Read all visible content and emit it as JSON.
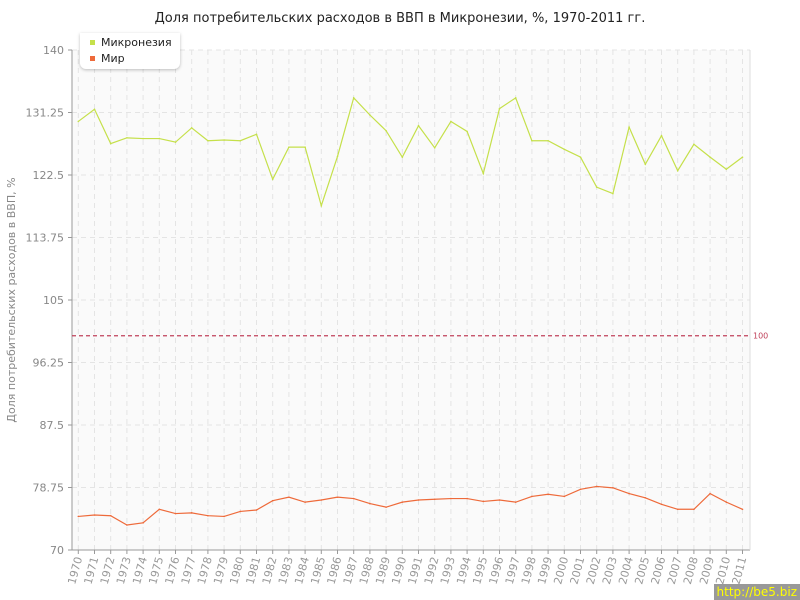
{
  "chart_data": {
    "type": "line",
    "title": "Доля потребительских расходов в ВВП в Микронезии, %, 1970-2011 гг.",
    "ylabel": "Доля потребительских расходов в ВВП, %",
    "xlabel": "",
    "ylim": [
      70,
      140
    ],
    "yticks": [
      "70",
      "78.75",
      "87.5",
      "96.25",
      "105",
      "113.75",
      "122.5",
      "131.25",
      "140"
    ],
    "x": [
      "1970",
      "1971",
      "1972",
      "1973",
      "1974",
      "1975",
      "1976",
      "1977",
      "1978",
      "1979",
      "1980",
      "1981",
      "1982",
      "1983",
      "1984",
      "1985",
      "1986",
      "1987",
      "1988",
      "1989",
      "1990",
      "1991",
      "1992",
      "1993",
      "1994",
      "1995",
      "1996",
      "1997",
      "1998",
      "1999",
      "2000",
      "2001",
      "2002",
      "2003",
      "2004",
      "2005",
      "2006",
      "2007",
      "2008",
      "2009",
      "2010",
      "2011"
    ],
    "series": [
      {
        "name": "Микронезия",
        "color": "#c5e04a",
        "values": [
          130.0,
          131.7,
          126.9,
          127.7,
          127.6,
          127.6,
          127.1,
          129.1,
          127.3,
          127.4,
          127.3,
          128.2,
          121.9,
          126.4,
          126.4,
          118.2,
          125.1,
          133.3,
          130.9,
          128.7,
          125.0,
          129.4,
          126.3,
          130.0,
          128.6,
          122.7,
          131.8,
          133.3,
          127.3,
          127.3,
          126.1,
          125.0,
          120.8,
          119.9,
          129.2,
          124.0,
          128.0,
          123.1,
          126.8,
          125.0,
          123.3,
          125.0
        ]
      },
      {
        "name": "Мир",
        "color": "#ee6a3a",
        "values": [
          74.7,
          74.9,
          74.8,
          73.5,
          73.8,
          75.7,
          75.1,
          75.2,
          74.8,
          74.7,
          75.4,
          75.6,
          76.9,
          77.4,
          76.7,
          77.0,
          77.4,
          77.2,
          76.5,
          76.0,
          76.7,
          77.0,
          77.1,
          77.2,
          77.2,
          76.8,
          77.0,
          76.7,
          77.5,
          77.8,
          77.5,
          78.5,
          78.9,
          78.7,
          77.9,
          77.3,
          76.4,
          75.7,
          75.7,
          77.9,
          76.7,
          75.7
        ]
      }
    ],
    "reference_line": {
      "value": 100,
      "label": "100",
      "color": "#c0415a"
    },
    "grid": true,
    "legend": "top-left"
  },
  "watermark": "http://be5.biz"
}
